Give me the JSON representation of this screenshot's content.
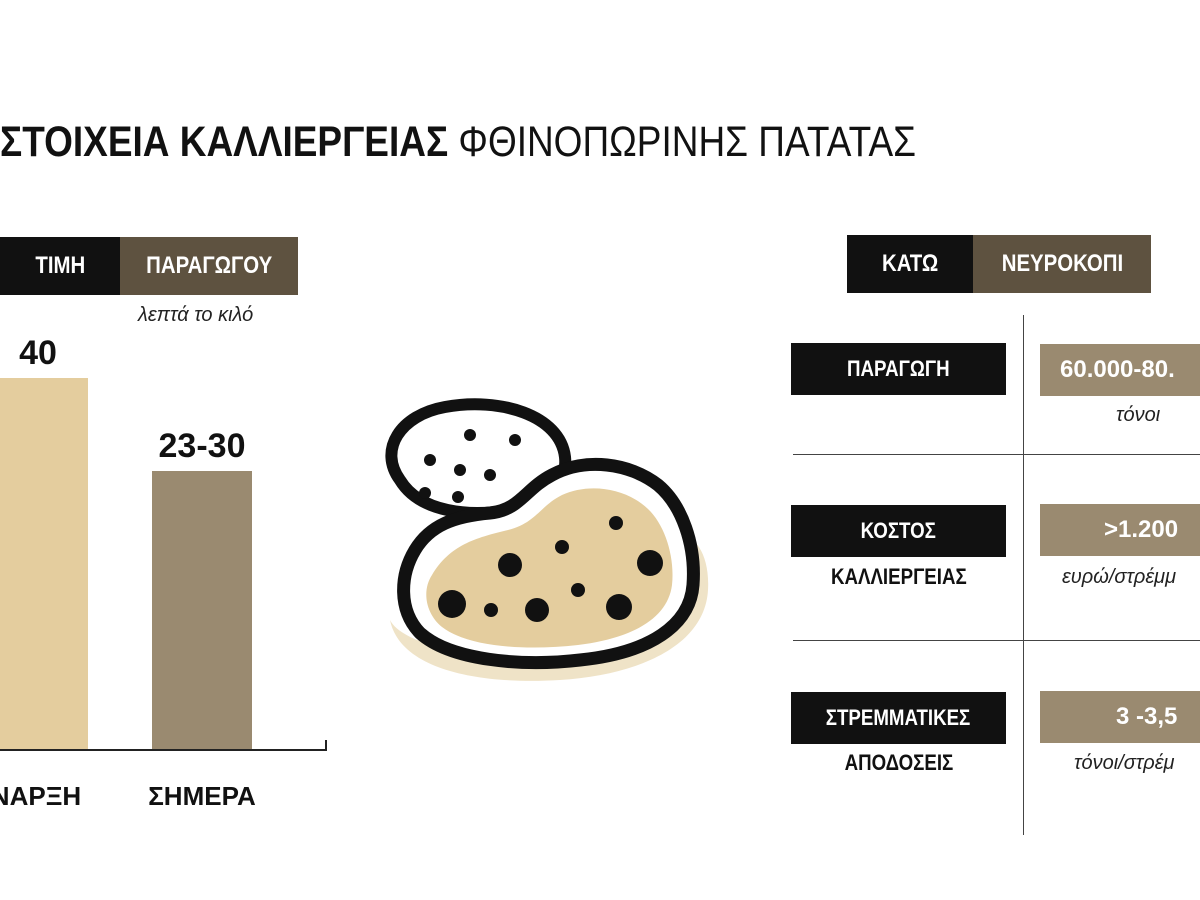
{
  "title": {
    "bold": "ΣΤΟΙΧΕΙΑ ΚΑΛΛΙΕΡΓΕΙΑΣ",
    "light": "ΦΘΙΝΟΠΩΡΙΝΗΣ ΠΑΤΑΤΑΣ"
  },
  "price_panel": {
    "tag_black": "ΤΙΜΗ",
    "tag_brown": "ΠΑΡΑΓΩΓΟΥ",
    "unit": "λεπτά το κιλό"
  },
  "chart_data": {
    "type": "bar",
    "categories": [
      "ΝΑΡΞΗ",
      "ΣΗΜΕΡΑ"
    ],
    "values": [
      40,
      30
    ],
    "value_labels": [
      "40",
      "23-30"
    ],
    "bar_colors": [
      "#e4cd9e",
      "#9a8a70"
    ],
    "ylabel": "λεπτά το κιλό",
    "ylim": [
      0,
      40
    ]
  },
  "illustration": {
    "icon": "potato-icon"
  },
  "region_panel": {
    "tag_black": "ΚΑΤΩ",
    "tag_brown": "ΝΕΥΡΟΚΟΠΙ",
    "rows": [
      {
        "label": "ΠΑΡΑΓΩΓΗ",
        "label2": "",
        "value": "60.000-80.",
        "unit": "τόνοι"
      },
      {
        "label": "ΚΟΣΤΟΣ",
        "label2": "ΚΑΛΛΙΕΡΓΕΙΑΣ",
        "value": ">1.200",
        "unit": "ευρώ/στρέμμ"
      },
      {
        "label": "ΣΤΡΕΜΜΑΤΙΚΕΣ",
        "label2": "ΑΠΟΔΟΣΕΙΣ",
        "value": "3 -3,5",
        "unit": "τόνοι/στρέμ"
      }
    ]
  },
  "colors": {
    "black": "#111111",
    "dark_brown": "#5e5240",
    "mid_brown": "#9a8a70",
    "light_tan": "#e4cd9e"
  }
}
